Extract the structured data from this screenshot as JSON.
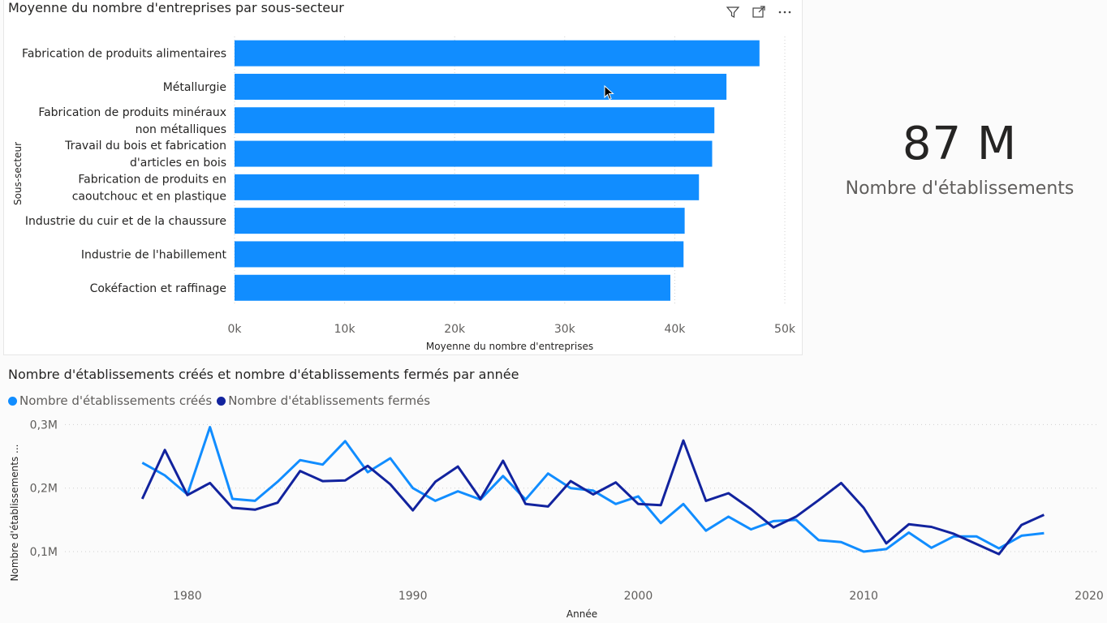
{
  "bar_visual": {
    "title": "Moyenne du nombre d'entreprises par sous-secteur",
    "toolbar": {
      "filter": "filter-icon",
      "focus": "focus-mode-icon",
      "more": "more-options-icon"
    }
  },
  "kpi": {
    "value": "87 M",
    "label": "Nombre d'établissements"
  },
  "line_visual": {
    "title": "Nombre d'établissements créés et nombre d'établissements fermés par année"
  },
  "chart_data": [
    {
      "type": "bar",
      "orientation": "horizontal",
      "title": "Moyenne du nombre d'entreprises par sous-secteur",
      "xlabel": "Moyenne du nombre d'entreprises",
      "ylabel": "Sous-secteur",
      "categories": [
        [
          "Fabrication de produits alimentaires"
        ],
        [
          "Métallurgie"
        ],
        [
          "Fabrication de produits minéraux",
          "non métalliques"
        ],
        [
          "Travail du bois et fabrication",
          "d'articles en bois"
        ],
        [
          "Fabrication de produits en",
          "caoutchouc et en plastique"
        ],
        [
          "Industrie du cuir et de la chaussure"
        ],
        [
          "Industrie de l'habillement"
        ],
        [
          "Cokéfaction et raffinage"
        ]
      ],
      "values": [
        47700,
        44700,
        43600,
        43400,
        42200,
        40900,
        40800,
        39600
      ],
      "xlim": [
        0,
        50000
      ],
      "xticks": [
        0,
        10000,
        20000,
        30000,
        40000,
        50000
      ],
      "xtick_labels": [
        "0k",
        "10k",
        "20k",
        "30k",
        "40k",
        "50k"
      ],
      "color": "#118DFF",
      "grid": true
    },
    {
      "type": "line",
      "title": "Nombre d'établissements créés et nombre d'établissements fermés par année",
      "xlabel": "Année",
      "ylabel": "Nombre d'établissements ...",
      "x": [
        1978,
        1979,
        1980,
        1981,
        1982,
        1983,
        1984,
        1985,
        1986,
        1987,
        1988,
        1989,
        1990,
        1991,
        1992,
        1993,
        1994,
        1995,
        1996,
        1997,
        1998,
        1999,
        2000,
        2001,
        2002,
        2003,
        2004,
        2005,
        2006,
        2007,
        2008,
        2009,
        2010,
        2011,
        2012,
        2013,
        2014,
        2015,
        2016,
        2017,
        2018
      ],
      "series": [
        {
          "name": "Nombre d'établissements créés",
          "color": "#118DFF",
          "values": [
            0.24,
            0.22,
            0.19,
            0.296,
            0.183,
            0.18,
            0.21,
            0.244,
            0.237,
            0.274,
            0.225,
            0.247,
            0.2,
            0.18,
            0.195,
            0.182,
            0.219,
            0.182,
            0.223,
            0.2,
            0.196,
            0.175,
            0.187,
            0.145,
            0.175,
            0.133,
            0.155,
            0.135,
            0.148,
            0.15,
            0.118,
            0.115,
            0.1,
            0.104,
            0.13,
            0.106,
            0.124,
            0.124,
            0.105,
            0.125,
            0.129
          ]
        },
        {
          "name": "Nombre d'établissements fermés",
          "color": "#12239E",
          "values": [
            0.183,
            0.26,
            0.189,
            0.208,
            0.169,
            0.166,
            0.177,
            0.227,
            0.211,
            0.212,
            0.235,
            0.206,
            0.165,
            0.21,
            0.234,
            0.183,
            0.243,
            0.175,
            0.171,
            0.211,
            0.19,
            0.209,
            0.175,
            0.173,
            0.275,
            0.18,
            0.192,
            0.167,
            0.138,
            0.155,
            0.181,
            0.208,
            0.169,
            0.113,
            0.143,
            0.139,
            0.128,
            0.112,
            0.096,
            0.142,
            0.158
          ]
        }
      ],
      "xlim": [
        1975,
        2020
      ],
      "xticks": [
        1980,
        1990,
        2000,
        2010,
        2020
      ],
      "yticks": [
        0.1,
        0.2,
        0.3
      ],
      "ytick_labels": [
        "0,1M",
        "0,2M",
        "0,3M"
      ],
      "grid": true,
      "legend": "top-left"
    }
  ]
}
